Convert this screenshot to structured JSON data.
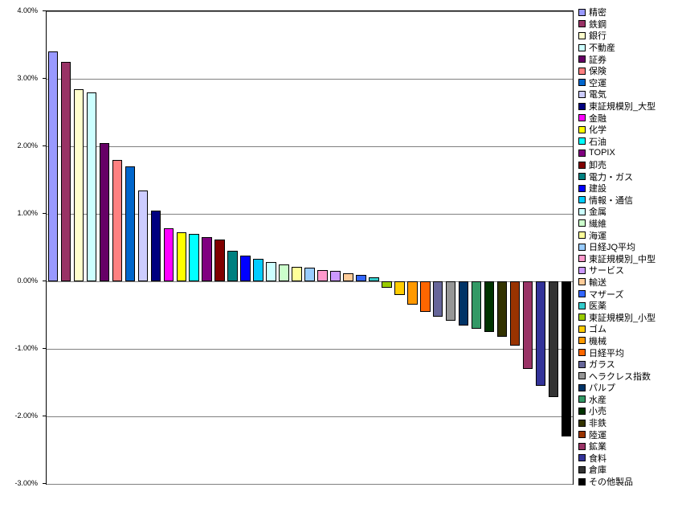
{
  "chart_data": {
    "type": "bar",
    "title": "",
    "xlabel": "",
    "ylabel": "",
    "ylim": [
      -3.0,
      4.0
    ],
    "y_ticks": [
      "4.00%",
      "3.00%",
      "2.00%",
      "1.00%",
      "0.00%",
      "-1.00%",
      "-2.00%",
      "-3.00%"
    ],
    "y_tick_values": [
      4,
      3,
      2,
      1,
      0,
      -1,
      -2,
      -3
    ],
    "grid": true,
    "legend_position": "right",
    "categories": [
      "精密",
      "鉄鋼",
      "銀行",
      "不動産",
      "証券",
      "保険",
      "空運",
      "電気",
      "東証規模別_大型",
      "金融",
      "化学",
      "石油",
      "TOPIX",
      "卸売",
      "電力・ガス",
      "建設",
      "情報・通信",
      "金属",
      "繊維",
      "海運",
      "日経JQ平均",
      "東証規模別_中型",
      "サービス",
      "輸送",
      "マザーズ",
      "医薬",
      "東証規模別_小型",
      "ゴム",
      "機械",
      "日経平均",
      "ガラス",
      "ヘラクレス指数",
      "パルプ",
      "水産",
      "小売",
      "非鉄",
      "陸運",
      "鉱業",
      "食料",
      "倉庫",
      "その他製品"
    ],
    "values": [
      3.4,
      3.25,
      2.85,
      2.8,
      2.05,
      1.8,
      1.7,
      1.35,
      1.05,
      0.78,
      0.73,
      0.7,
      0.66,
      0.62,
      0.45,
      0.38,
      0.33,
      0.28,
      0.25,
      0.22,
      0.2,
      0.17,
      0.15,
      0.12,
      0.1,
      0.06,
      -0.1,
      -0.2,
      -0.35,
      -0.45,
      -0.52,
      -0.58,
      -0.65,
      -0.7,
      -0.75,
      -0.82,
      -0.95,
      -1.3,
      -1.55,
      -1.72,
      -2.3
    ],
    "colors": [
      "#9999FF",
      "#993366",
      "#FFFFCC",
      "#CCFFFF",
      "#660066",
      "#FF8080",
      "#0066CC",
      "#CCCCFF",
      "#000080",
      "#FF00FF",
      "#FFFF00",
      "#00FFFF",
      "#800080",
      "#800000",
      "#008080",
      "#0000FF",
      "#00CCFF",
      "#CCFFFF",
      "#CCFFCC",
      "#FFFF99",
      "#99CCFF",
      "#FF99CC",
      "#CC99FF",
      "#FFCC99",
      "#3366FF",
      "#33CCCC",
      "#99CC00",
      "#FFCC00",
      "#FF9900",
      "#FF6600",
      "#666699",
      "#969696",
      "#003366",
      "#339966",
      "#003300",
      "#333300",
      "#993300",
      "#993366",
      "#333399",
      "#333333",
      "#000000"
    ]
  }
}
